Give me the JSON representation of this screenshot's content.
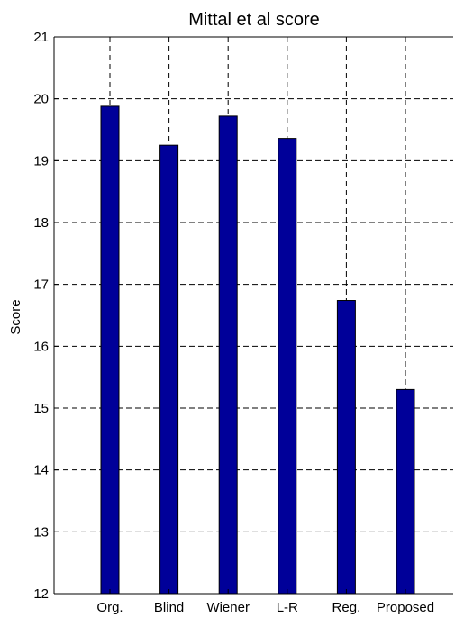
{
  "chart_data": {
    "type": "bar",
    "title": "Mittal et al score",
    "xlabel": "",
    "ylabel": "Score",
    "categories": [
      "Org.",
      "Blind",
      "Wiener",
      "L-R",
      "Reg.",
      "Proposed"
    ],
    "values": [
      19.88,
      19.25,
      19.72,
      19.36,
      16.74,
      15.3
    ],
    "ylim": [
      12,
      21
    ],
    "yticks": [
      12,
      13,
      14,
      15,
      16,
      17,
      18,
      19,
      20,
      21
    ],
    "grid": true,
    "grid_style": "dashed",
    "bar_color": "#000099",
    "legend": null
  }
}
